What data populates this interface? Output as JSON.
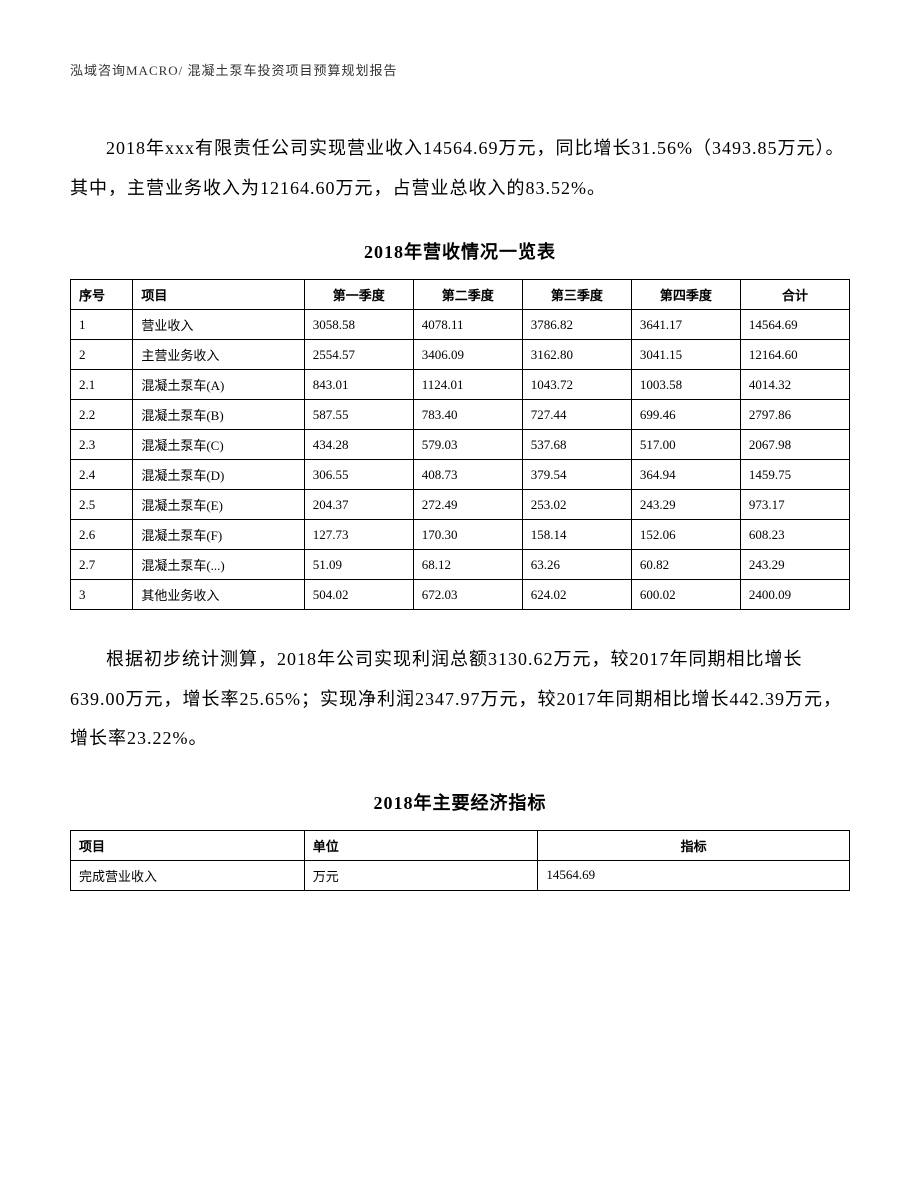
{
  "header": "泓域咨询MACRO/    混凝土泵车投资项目预算规划报告",
  "paragraph1": "2018年xxx有限责任公司实现营业收入14564.69万元，同比增长31.56%（3493.85万元）。其中，主营业务收入为12164.60万元，占营业总收入的83.52%。",
  "table1_title": "2018年营收情况一览表",
  "table1": {
    "columns": [
      "序号",
      "项目",
      "第一季度",
      "第二季度",
      "第三季度",
      "第四季度",
      "合计"
    ],
    "rows": [
      [
        "1",
        "营业收入",
        "3058.58",
        "4078.11",
        "3786.82",
        "3641.17",
        "14564.69"
      ],
      [
        "2",
        "主营业务收入",
        "2554.57",
        "3406.09",
        "3162.80",
        "3041.15",
        "12164.60"
      ],
      [
        "2.1",
        "混凝土泵车(A)",
        "843.01",
        "1124.01",
        "1043.72",
        "1003.58",
        "4014.32"
      ],
      [
        "2.2",
        "混凝土泵车(B)",
        "587.55",
        "783.40",
        "727.44",
        "699.46",
        "2797.86"
      ],
      [
        "2.3",
        "混凝土泵车(C)",
        "434.28",
        "579.03",
        "537.68",
        "517.00",
        "2067.98"
      ],
      [
        "2.4",
        "混凝土泵车(D)",
        "306.55",
        "408.73",
        "379.54",
        "364.94",
        "1459.75"
      ],
      [
        "2.5",
        "混凝土泵车(E)",
        "204.37",
        "272.49",
        "253.02",
        "243.29",
        "973.17"
      ],
      [
        "2.6",
        "混凝土泵车(F)",
        "127.73",
        "170.30",
        "158.14",
        "152.06",
        "608.23"
      ],
      [
        "2.7",
        "混凝土泵车(...)",
        "51.09",
        "68.12",
        "63.26",
        "60.82",
        "243.29"
      ],
      [
        "3",
        "其他业务收入",
        "504.02",
        "672.03",
        "624.02",
        "600.02",
        "2400.09"
      ]
    ]
  },
  "paragraph2": "根据初步统计测算，2018年公司实现利润总额3130.62万元，较2017年同期相比增长639.00万元，增长率25.65%；实现净利润2347.97万元，较2017年同期相比增长442.39万元，增长率23.22%。",
  "table2_title": "2018年主要经济指标",
  "table2": {
    "columns": [
      "项目",
      "单位",
      "指标"
    ],
    "rows": [
      [
        "完成营业收入",
        "万元",
        "14564.69"
      ]
    ]
  }
}
